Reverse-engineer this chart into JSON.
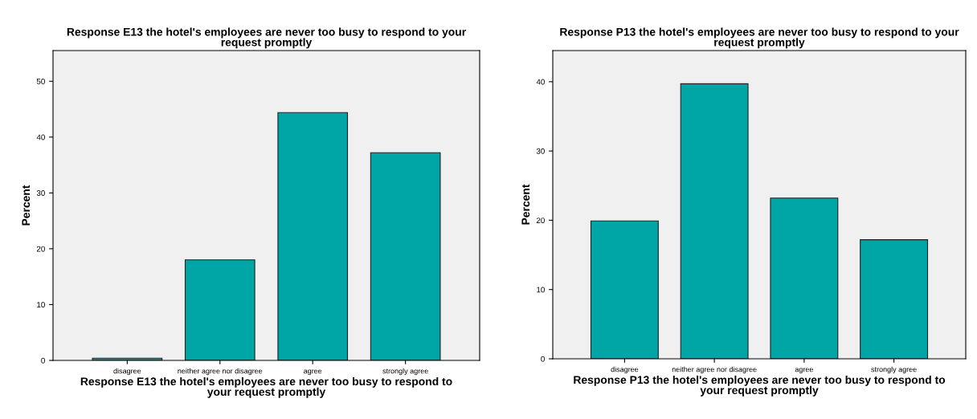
{
  "chart_data": [
    {
      "type": "bar",
      "title": "Response E13 the hotel's employees are never too busy to respond to your request promptly",
      "xlabel": "Response E13 the hotel's employees are never too busy to respond to your request promptly",
      "ylabel": "Percent",
      "categories": [
        "disagree",
        "neither agree nor disagree",
        "agree",
        "strongly agree"
      ],
      "values": [
        0.4,
        18.0,
        44.4,
        37.2
      ],
      "color": "#00a5a5",
      "ylim": [
        0,
        55.5
      ],
      "yticks": [
        0,
        10,
        20,
        30,
        40,
        50
      ],
      "grid": false,
      "legend": false
    },
    {
      "type": "bar",
      "title": "Response P13 the hotel's employees are never too busy to respond to your request promptly",
      "xlabel": "Response P13 the hotel's employees are never too busy to respond to your request promptly",
      "ylabel": "Percent",
      "categories": [
        "disagree",
        "neither agree nor disagree",
        "agree",
        "strongly agree"
      ],
      "values": [
        19.9,
        39.7,
        23.2,
        17.2
      ],
      "color": "#00a5a5",
      "ylim": [
        0,
        44.5
      ],
      "yticks": [
        0,
        10,
        20,
        30,
        40
      ],
      "grid": false,
      "legend": false
    }
  ]
}
